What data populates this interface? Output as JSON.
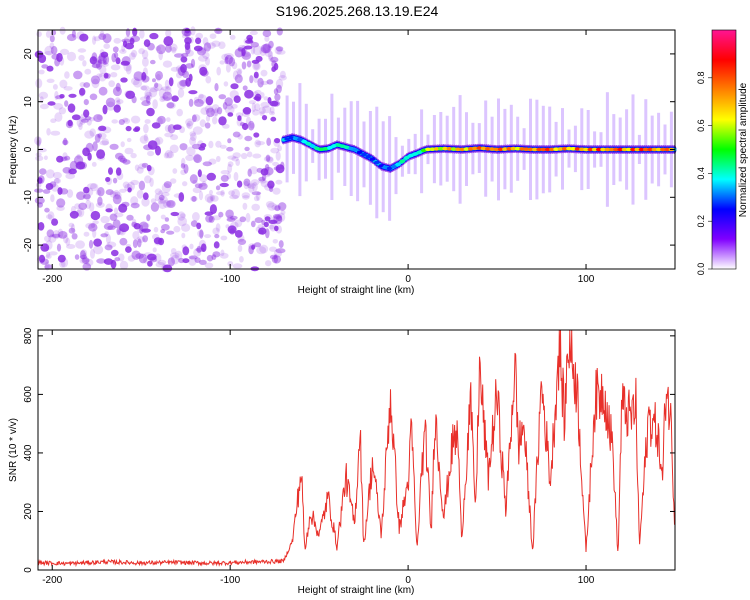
{
  "title": "S196.2025.268.13.19.E24",
  "chart_data": [
    {
      "type": "heatmap",
      "xlabel": "Height of straight line (km)",
      "ylabel": "Frequency (Hz)",
      "xlim": [
        -208,
        150
      ],
      "ylim": [
        -25,
        25
      ],
      "x_ticks": [
        -200,
        -100,
        0,
        100
      ],
      "y_ticks": [
        -20,
        -10,
        0,
        10,
        20
      ],
      "colorbar": {
        "label": "Normalized spectral amplitude",
        "range": [
          0,
          1
        ],
        "ticks": [
          "0.0",
          "0.2",
          "0.4",
          "0.6",
          "0.8"
        ],
        "colors": [
          "#ffffff",
          "#8000ff",
          "#0000ff",
          "#00ffff",
          "#00ff00",
          "#ffff00",
          "#ff8000",
          "#ff0000",
          "#ff1493"
        ]
      },
      "noise_region_x": [
        -208,
        -70
      ],
      "ridge": {
        "x": [
          -70,
          -65,
          -60,
          -55,
          -50,
          -45,
          -40,
          -35,
          -30,
          -25,
          -20,
          -15,
          -10,
          -5,
          0,
          5,
          10,
          20,
          30,
          40,
          50,
          60,
          70,
          80,
          90,
          100,
          110,
          120,
          130,
          140,
          150
        ],
        "freq": [
          2.0,
          2.5,
          2.0,
          1.0,
          0.0,
          0.2,
          1.0,
          0.5,
          0.0,
          -1.0,
          -2.0,
          -3.5,
          -4.0,
          -3.0,
          -1.5,
          -0.8,
          0.0,
          0.2,
          0.0,
          0.3,
          0.0,
          0.2,
          0.0,
          0.0,
          0.2,
          0.0,
          0.0,
          0.0,
          0.0,
          0.0,
          0.0
        ],
        "amplitude": [
          0.25,
          0.3,
          0.35,
          0.4,
          0.45,
          0.5,
          0.45,
          0.4,
          0.35,
          0.3,
          0.3,
          0.3,
          0.35,
          0.4,
          0.45,
          0.5,
          0.6,
          0.7,
          0.75,
          0.8,
          0.85,
          0.8,
          0.8,
          0.85,
          0.8,
          0.85,
          0.85,
          0.85,
          0.85,
          0.8,
          0.8
        ]
      }
    },
    {
      "type": "line",
      "xlabel": "Height of straight line (km)",
      "ylabel": "SNR (10 * v/v)",
      "xlim": [
        -208,
        150
      ],
      "ylim": [
        0,
        820
      ],
      "x_ticks": [
        -200,
        -100,
        0,
        100
      ],
      "y_ticks": [
        0,
        200,
        400,
        600,
        800
      ],
      "series": [
        {
          "name": "SNR",
          "color": "#e8302a",
          "x": [
            -208,
            -190,
            -170,
            -150,
            -130,
            -110,
            -90,
            -70,
            -65,
            -60,
            -58,
            -55,
            -50,
            -45,
            -40,
            -35,
            -30,
            -27,
            -25,
            -20,
            -15,
            -12,
            -10,
            -5,
            0,
            2,
            5,
            8,
            10,
            13,
            15,
            20,
            25,
            28,
            30,
            35,
            38,
            40,
            45,
            50,
            55,
            60,
            62,
            65,
            70,
            75,
            80,
            85,
            88,
            90,
            95,
            100,
            105,
            110,
            115,
            118,
            120,
            125,
            128,
            130,
            135,
            140,
            143,
            145,
            148,
            150
          ],
          "y": [
            25,
            22,
            28,
            24,
            26,
            23,
            27,
            30,
            100,
            340,
            60,
            200,
            120,
            250,
            80,
            320,
            150,
            500,
            80,
            370,
            120,
            400,
            600,
            140,
            300,
            480,
            60,
            380,
            450,
            120,
            540,
            180,
            430,
            460,
            100,
            580,
            200,
            690,
            320,
            600,
            200,
            710,
            420,
            500,
            60,
            640,
            300,
            780,
            500,
            800,
            620,
            60,
            580,
            620,
            420,
            40,
            560,
            520,
            560,
            80,
            520,
            480,
            300,
            650,
            480,
            120
          ]
        }
      ]
    }
  ]
}
